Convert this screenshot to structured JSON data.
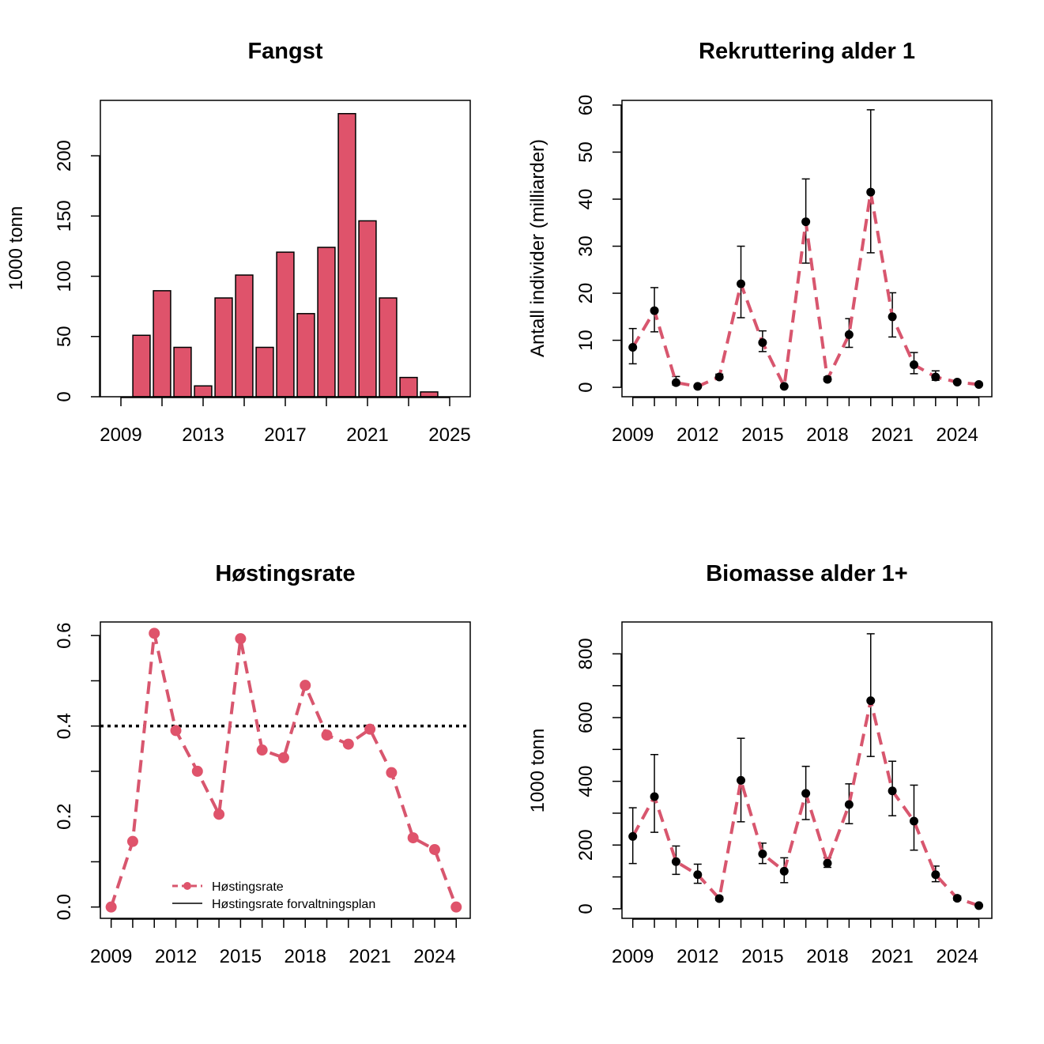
{
  "colors": {
    "series": "#DF536B",
    "series_line": "#D8566E",
    "marker": "#000000"
  },
  "chart_data": [
    {
      "type": "bar",
      "title": "Fangst",
      "ylabel": "1000 tonn",
      "xlabel": "",
      "x": [
        2010,
        2011,
        2012,
        2013,
        2014,
        2015,
        2016,
        2017,
        2018,
        2019,
        2020,
        2021,
        2022,
        2023,
        2024
      ],
      "values": [
        51,
        88,
        41,
        9,
        82,
        101,
        41,
        120,
        69,
        124,
        235,
        146,
        82,
        16,
        4
      ],
      "xlim": [
        2008,
        2026
      ],
      "ylim": [
        0,
        246
      ],
      "xticks": [
        2009,
        2013,
        2017,
        2021,
        2025
      ],
      "xtick_minor": [
        2009,
        2011,
        2013,
        2015,
        2017,
        2019,
        2021,
        2023,
        2025
      ],
      "yticks": [
        0,
        50,
        100,
        150,
        200
      ],
      "grid": false
    },
    {
      "type": "line",
      "title": "Rekruttering alder 1",
      "ylabel": "Antall individer (milliarder)",
      "xlabel": "",
      "x": [
        2009,
        2010,
        2011,
        2012,
        2013,
        2014,
        2015,
        2016,
        2017,
        2018,
        2019,
        2020,
        2021,
        2022,
        2023,
        2024,
        2025
      ],
      "values": [
        8.5,
        16.3,
        1.0,
        0.2,
        2.2,
        22.0,
        9.5,
        0.2,
        35.2,
        1.7,
        11.2,
        41.5,
        15.0,
        4.8,
        2.2,
        1.1,
        0.6
      ],
      "lower": [
        5.0,
        11.8,
        0.5,
        0.1,
        1.8,
        14.8,
        7.6,
        0.1,
        26.4,
        1.3,
        8.5,
        28.6,
        10.7,
        2.9,
        1.5,
        0.9,
        0.4
      ],
      "upper": [
        12.5,
        21.2,
        2.3,
        0.4,
        2.8,
        30.0,
        12.0,
        0.4,
        44.3,
        2.2,
        14.6,
        59.0,
        20.1,
        7.4,
        3.5,
        1.5,
        1.0
      ],
      "xlim": [
        2008.5,
        2025.6
      ],
      "ylim": [
        -2,
        61
      ],
      "xticks": [
        2009,
        2012,
        2015,
        2018,
        2021,
        2024
      ],
      "yticks": [
        0,
        10,
        20,
        30,
        40,
        50,
        60
      ],
      "grid": false
    },
    {
      "type": "line",
      "title": "Høstingsrate",
      "ylabel": "",
      "xlabel": "",
      "x": [
        2009,
        2010,
        2011,
        2012,
        2013,
        2014,
        2015,
        2016,
        2017,
        2018,
        2019,
        2020,
        2021,
        2022,
        2023,
        2024,
        2025
      ],
      "values": [
        0.0,
        0.145,
        0.605,
        0.39,
        0.3,
        0.205,
        0.593,
        0.347,
        0.33,
        0.49,
        0.38,
        0.36,
        0.393,
        0.297,
        0.153,
        0.127,
        0.0
      ],
      "reference_line": 0.4,
      "xlim": [
        2008.5,
        2025.65
      ],
      "ylim": [
        -0.025,
        0.63
      ],
      "xticks": [
        2009,
        2012,
        2015,
        2018,
        2021,
        2024
      ],
      "yticks": [
        0.0,
        0.2,
        0.4,
        0.6
      ],
      "ytick_labels": [
        "0.0",
        "0.2",
        "0.4",
        "0.6"
      ],
      "legend": [
        "Høstingsrate",
        "Høstingsrate forvaltningsplan"
      ],
      "legend_position": "bottom-center",
      "grid": false
    },
    {
      "type": "line",
      "title": "Biomasse alder 1+",
      "ylabel": "1000 tonn",
      "xlabel": "",
      "x": [
        2009,
        2010,
        2011,
        2012,
        2013,
        2014,
        2015,
        2016,
        2017,
        2018,
        2019,
        2020,
        2021,
        2022,
        2023,
        2024,
        2025
      ],
      "values": [
        227,
        352,
        148,
        107,
        32,
        403,
        172,
        118,
        362,
        143,
        327,
        653,
        370,
        275,
        107,
        33,
        10
      ],
      "lower": [
        142,
        240,
        108,
        80,
        26,
        273,
        142,
        82,
        280,
        130,
        267,
        478,
        292,
        184,
        85,
        27,
        7
      ],
      "upper": [
        317,
        484,
        197,
        140,
        38,
        535,
        206,
        160,
        447,
        160,
        392,
        863,
        463,
        388,
        134,
        40,
        13
      ],
      "xlim": [
        2008.5,
        2025.6
      ],
      "ylim": [
        -30,
        900
      ],
      "xticks": [
        2009,
        2012,
        2015,
        2018,
        2021,
        2024
      ],
      "yticks": [
        0,
        200,
        400,
        600,
        800
      ],
      "grid": false
    }
  ]
}
